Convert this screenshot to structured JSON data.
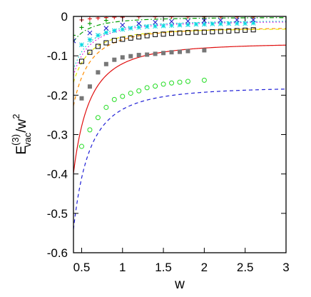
{
  "chart_data": {
    "type": "line",
    "xlabel": "w",
    "ylabel": {
      "base": "E",
      "superscript": "(3)",
      "subscript": "vac",
      "suffix": "/w",
      "suffix_superscript": "2"
    },
    "xlim": [
      0.4,
      3.0
    ],
    "ylim": [
      -0.6,
      0.0
    ],
    "xticks": [
      0.5,
      1,
      1.5,
      2,
      2.5,
      3
    ],
    "xtick_labels": [
      "0.5",
      "1",
      "1.5",
      "2",
      "2.5",
      "3"
    ],
    "yticks": [
      0,
      -0.1,
      -0.2,
      -0.3,
      -0.4,
      -0.5,
      -0.6
    ],
    "ytick_labels": [
      "0",
      "-0.1",
      "-0.2",
      "-0.3",
      "-0.4",
      "-0.5",
      "-0.6"
    ],
    "grid": false,
    "legend": "none",
    "curves": [
      {
        "color": "#1f1fd6",
        "dash": "dashed",
        "y_inf": -0.178,
        "coef": 0.058
      },
      {
        "color": "#e01010",
        "dash": "solid",
        "y_inf": -0.067,
        "coef": 0.053
      },
      {
        "color": "#ff8c00",
        "dash": "dashed",
        "y_inf": -0.027,
        "coef": 0.032
      },
      {
        "color": "#e8e800",
        "dash": "dashed",
        "y_inf": -0.03,
        "coef": 0.022
      },
      {
        "color": "#e000e0",
        "dash": "dotted",
        "y_inf": -0.012,
        "coef": 0.022
      },
      {
        "color": "#00c8c8",
        "dash": "dotted",
        "y_inf": -0.01,
        "coef": 0.02
      },
      {
        "color": "#00a000",
        "dash": "dashdot",
        "y_inf": -0.002,
        "coef": 0.01
      }
    ],
    "series": [
      {
        "marker": "open-circle",
        "color": "#22dd22",
        "x": [
          0.5,
          0.6,
          0.7,
          0.8,
          0.9,
          1.0,
          1.1,
          1.2,
          1.3,
          1.4,
          1.5,
          1.6,
          1.7,
          1.8,
          2.0
        ],
        "y": [
          -0.33,
          -0.288,
          -0.257,
          -0.231,
          -0.211,
          -0.203,
          -0.195,
          -0.189,
          -0.181,
          -0.177,
          -0.172,
          -0.169,
          -0.167,
          -0.165,
          -0.162
        ]
      },
      {
        "marker": "filled-square",
        "color": "#777777",
        "x": [
          0.5,
          0.6,
          0.7,
          0.8,
          0.9,
          1.0,
          1.1,
          1.2,
          1.3,
          1.4,
          1.5,
          1.6,
          1.7,
          1.8,
          2.0
        ],
        "y": [
          -0.208,
          -0.178,
          -0.142,
          -0.121,
          -0.11,
          -0.104,
          -0.101,
          -0.098,
          -0.097,
          -0.095,
          -0.093,
          -0.091,
          -0.09,
          -0.088,
          -0.086
        ]
      },
      {
        "marker": "open-square",
        "color": "#000000",
        "x": [
          0.5,
          0.6,
          0.7,
          0.8,
          0.9,
          1.0,
          1.1,
          1.2,
          1.3,
          1.4,
          1.5,
          1.6,
          1.7,
          1.8,
          1.9,
          2.0,
          2.1,
          2.2,
          2.3,
          2.4,
          2.5,
          2.6
        ],
        "y": [
          -0.114,
          -0.091,
          -0.076,
          -0.067,
          -0.061,
          -0.058,
          -0.055,
          -0.052,
          -0.049,
          -0.046,
          -0.045,
          -0.043,
          -0.042,
          -0.041,
          -0.04,
          -0.04,
          -0.039,
          -0.038,
          -0.037,
          -0.036,
          -0.035,
          -0.034
        ]
      },
      {
        "marker": "asterisk",
        "color": "#00d8e0",
        "x": [
          0.5,
          0.6,
          0.7,
          0.8,
          0.9,
          1.0,
          1.1,
          1.2,
          1.3,
          1.4,
          1.5,
          1.6,
          1.7,
          1.8,
          1.9,
          2.0,
          2.1,
          2.2,
          2.3,
          2.4,
          2.5,
          2.6
        ],
        "y": [
          -0.072,
          -0.059,
          -0.048,
          -0.041,
          -0.036,
          -0.033,
          -0.03,
          -0.028,
          -0.026,
          -0.025,
          -0.024,
          -0.023,
          -0.022,
          -0.021,
          -0.02,
          -0.02,
          -0.019,
          -0.019,
          -0.018,
          -0.018,
          -0.018,
          -0.017
        ]
      },
      {
        "marker": "cross",
        "color": "#2222cc",
        "x": [
          0.4,
          0.6,
          0.8,
          1.0,
          1.2,
          1.4,
          1.6,
          1.8,
          2.0,
          2.2,
          2.4,
          2.6
        ],
        "y": [
          -0.062,
          -0.042,
          -0.03,
          -0.022,
          -0.018,
          -0.015,
          -0.013,
          -0.012,
          -0.011,
          -0.01,
          -0.009,
          -0.009
        ]
      },
      {
        "marker": "plus",
        "color": "#dd1111",
        "x": [
          0.5,
          0.6,
          0.7,
          0.8,
          0.9,
          1.0,
          1.2,
          1.4,
          1.6,
          1.8,
          2.0,
          2.2,
          2.4,
          2.6
        ],
        "y": [
          -0.009,
          -0.006,
          -0.004,
          -0.003,
          -0.002,
          -0.002,
          -0.001,
          -0.001,
          -0.001,
          -0.001,
          -0.001,
          -0.001,
          -0.001,
          -0.001
        ]
      },
      {
        "marker": "plus",
        "color": "#009900",
        "x": [
          0.4,
          0.5,
          0.6,
          0.8
        ],
        "y": [
          -0.048,
          -0.028,
          -0.018,
          -0.01
        ]
      }
    ]
  }
}
